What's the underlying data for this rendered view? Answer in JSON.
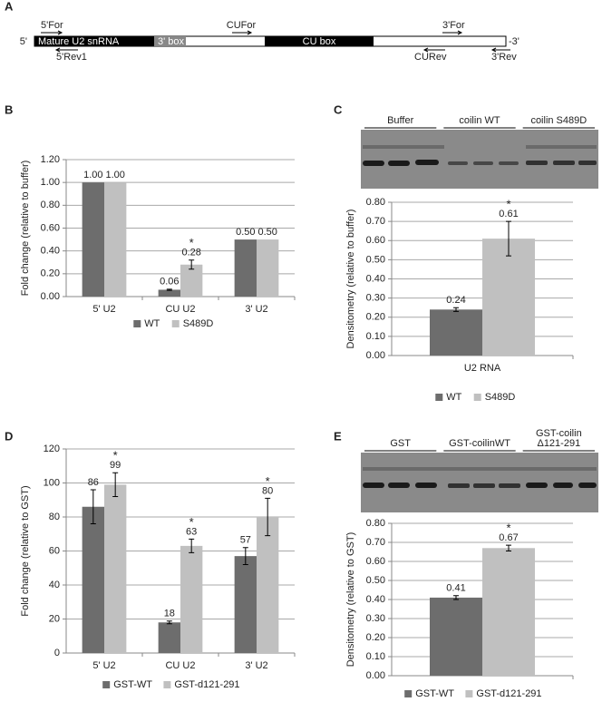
{
  "panels": [
    "A",
    "B",
    "C",
    "D",
    "E"
  ],
  "diagram": {
    "ends": [
      "5'",
      "-3'"
    ],
    "boxes": [
      "Mature U2 snRNA",
      "3' box",
      "CU box"
    ],
    "primers": [
      "5'For",
      "CUFor",
      "3'For",
      "5'Rev1",
      "CURev",
      "3'Rev"
    ]
  },
  "gels": [
    {
      "lanes": [
        [
          "Buffer"
        ],
        [
          "coilin WT"
        ],
        [
          "coilin S489D"
        ]
      ]
    },
    {
      "lanes": [
        [
          "GST"
        ],
        [
          "GST-coilinWT"
        ],
        [
          "GST-coilin",
          "Δ121-291"
        ]
      ]
    }
  ],
  "chart_data": [
    {
      "type": "bar",
      "ylabel": "Fold change (relative to buffer)",
      "categories": [
        "5' U2",
        "CU U2",
        "3' U2"
      ],
      "series": [
        {
          "name": "WT",
          "color": "#6d6d6d",
          "values": [
            1.0,
            0.06,
            0.5
          ],
          "value_labels": [
            "1.00",
            "0.06",
            "0.50"
          ],
          "errors": [
            null,
            0.005,
            null
          ],
          "marks": [
            null,
            null,
            null
          ]
        },
        {
          "name": "S489D",
          "color": "#c0c0c0",
          "values": [
            1.0,
            0.28,
            0.5
          ],
          "value_labels": [
            "1.00",
            "0.28",
            "0.50"
          ],
          "errors": [
            null,
            0.04,
            null
          ],
          "marks": [
            null,
            "*",
            null
          ]
        }
      ],
      "ylim": [
        0,
        1.2
      ],
      "yticks": [
        {
          "value": 0,
          "label": "0.00"
        },
        {
          "value": 0.2,
          "label": "0.20"
        },
        {
          "value": 0.4,
          "label": "0.40"
        },
        {
          "value": 0.6,
          "label": "0.60"
        },
        {
          "value": 0.8,
          "label": "0.80"
        },
        {
          "value": 1.0,
          "label": "1.00"
        },
        {
          "value": 1.2,
          "label": "1.20"
        }
      ],
      "grid": true,
      "legend": "bottom"
    },
    {
      "type": "bar",
      "ylabel": "Densitometry (relative to buffer)",
      "categories": [
        "U2 RNA"
      ],
      "series": [
        {
          "name": "WT",
          "color": "#6d6d6d",
          "values": [
            0.24
          ],
          "errors": [
            0.01
          ],
          "marks": [
            null
          ]
        },
        {
          "name": "S489D",
          "color": "#c0c0c0",
          "values": [
            0.61
          ],
          "errors": [
            0.09
          ],
          "marks": [
            "*"
          ]
        }
      ],
      "ylim": [
        0,
        0.8
      ],
      "yticks": [
        {
          "value": 0,
          "label": "0.00"
        },
        {
          "value": 0.1,
          "label": "0.10"
        },
        {
          "value": 0.2,
          "label": "0.20"
        },
        {
          "value": 0.3,
          "label": "0.30"
        },
        {
          "value": 0.4,
          "label": "0.40"
        },
        {
          "value": 0.5,
          "label": "0.50"
        },
        {
          "value": 0.6,
          "label": "0.60"
        },
        {
          "value": 0.7,
          "label": "0.70"
        },
        {
          "value": 0.8,
          "label": "0.80"
        }
      ],
      "grid": true,
      "legend": "bottom"
    },
    {
      "type": "bar",
      "ylabel": "Fold change (relative to GST)",
      "categories": [
        "5' U2",
        "CU U2",
        "3' U2"
      ],
      "series": [
        {
          "name": "GST-WT",
          "color": "#6d6d6d",
          "values": [
            86,
            18,
            57
          ],
          "errors": [
            10,
            0.8,
            5
          ],
          "marks": [
            null,
            null,
            null
          ]
        },
        {
          "name": "GST-d121-291",
          "color": "#c0c0c0",
          "values": [
            99,
            63,
            80
          ],
          "errors": [
            7,
            4,
            11
          ],
          "marks": [
            "*",
            "*",
            "*"
          ]
        }
      ],
      "ylim": [
        0,
        120
      ],
      "yticks": [
        0,
        20,
        40,
        60,
        80,
        100,
        120
      ],
      "grid": true,
      "legend": "bottom"
    },
    {
      "type": "bar",
      "ylabel": "Densitometry (relative to GST)",
      "categories": [
        null
      ],
      "series": [
        {
          "name": "GST-WT",
          "color": "#6d6d6d",
          "values": [
            0.41
          ],
          "errors": [
            0.01
          ],
          "marks": [
            null
          ]
        },
        {
          "name": "GST-d121-291",
          "color": "#c0c0c0",
          "values": [
            0.67
          ],
          "errors": [
            0.015
          ],
          "marks": [
            "*"
          ]
        }
      ],
      "ylim": [
        0,
        0.8
      ],
      "yticks": [
        {
          "value": 0,
          "label": "0.00"
        },
        {
          "value": 0.1,
          "label": "0.10"
        },
        {
          "value": 0.2,
          "label": "0.20"
        },
        {
          "value": 0.3,
          "label": "0.30"
        },
        {
          "value": 0.4,
          "label": "0.40"
        },
        {
          "value": 0.5,
          "label": "0.50"
        },
        {
          "value": 0.6,
          "label": "0.60"
        },
        {
          "value": 0.7,
          "label": "0.70"
        },
        {
          "value": 0.8,
          "label": "0.80"
        }
      ],
      "grid": true,
      "legend": "bottom"
    }
  ]
}
